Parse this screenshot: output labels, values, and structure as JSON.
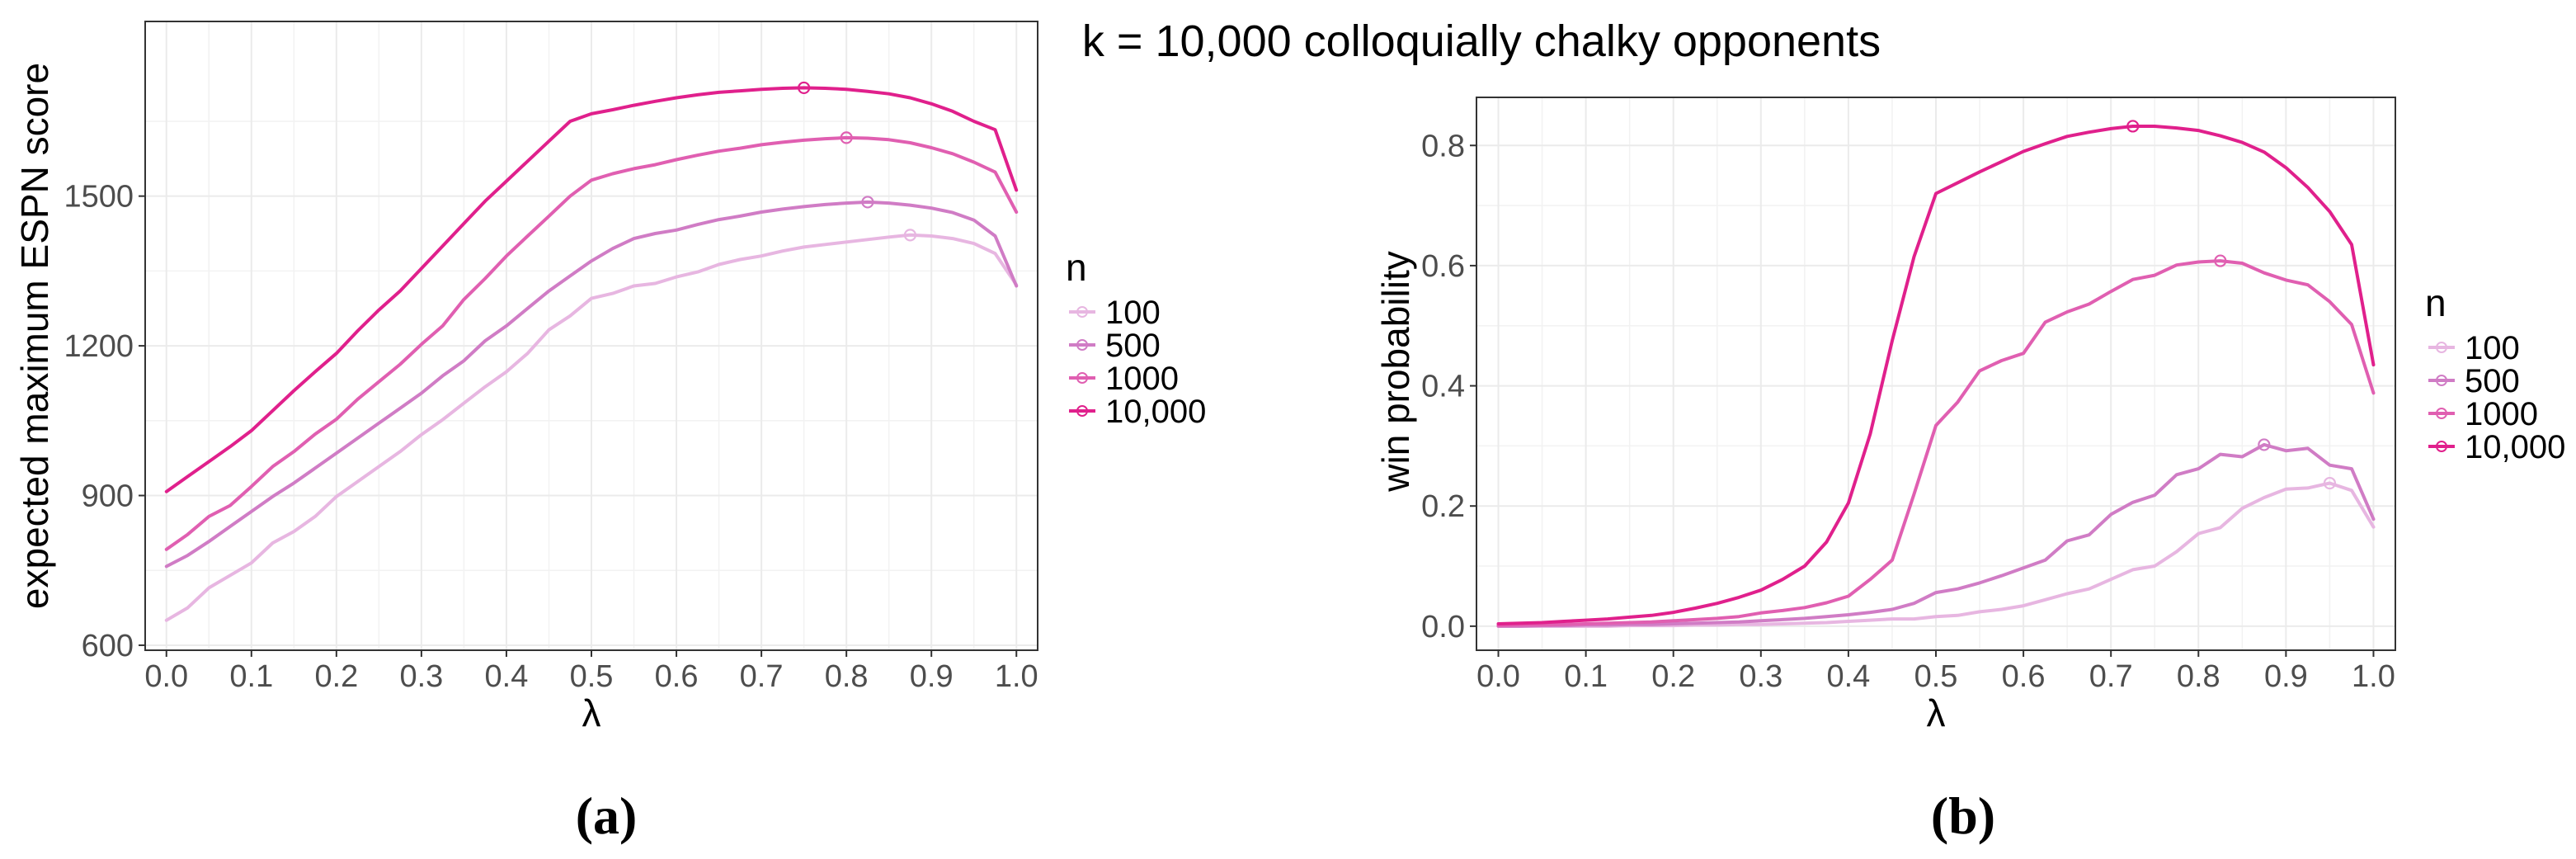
{
  "chart_data": [
    {
      "id": "a",
      "type": "line",
      "caption": "(a)",
      "title": "",
      "xlabel": "λ",
      "ylabel": "expected maximum ESPN score",
      "xlim": [
        -0.025,
        1.025
      ],
      "ylim": [
        590,
        1850
      ],
      "xticks": [
        0.0,
        0.1,
        0.2,
        0.3,
        0.4,
        0.5,
        0.6,
        0.7,
        0.8,
        0.9,
        1.0
      ],
      "xtick_labels": [
        "0.0",
        "0.1",
        "0.2",
        "0.3",
        "0.4",
        "0.5",
        "0.6",
        "0.7",
        "0.8",
        "0.9",
        "1.0"
      ],
      "yticks": [
        600,
        900,
        1200,
        1500
      ],
      "ytick_labels": [
        "600",
        "900",
        "1200",
        "1500"
      ],
      "legend_title": "n",
      "legend_position": "right",
      "x": [
        0,
        0.025,
        0.05,
        0.075,
        0.1,
        0.125,
        0.15,
        0.175,
        0.2,
        0.225,
        0.25,
        0.275,
        0.3,
        0.325,
        0.35,
        0.375,
        0.4,
        0.425,
        0.45,
        0.475,
        0.5,
        0.525,
        0.55,
        0.575,
        0.6,
        0.625,
        0.65,
        0.675,
        0.7,
        0.725,
        0.75,
        0.775,
        0.8,
        0.825,
        0.85,
        0.875,
        0.9,
        0.925,
        0.95,
        0.975,
        1.0
      ],
      "series": [
        {
          "name": "100",
          "color": "#e7b6e1",
          "values": [
            650,
            675,
            715,
            740,
            765,
            805,
            828,
            858,
            898,
            928,
            958,
            988,
            1022,
            1052,
            1085,
            1118,
            1148,
            1185,
            1232,
            1260,
            1295,
            1305,
            1320,
            1325,
            1338,
            1348,
            1363,
            1373,
            1380,
            1390,
            1398,
            1403,
            1408,
            1413,
            1418,
            1422,
            1420,
            1415,
            1405,
            1385,
            1322
          ],
          "max_x": 0.875,
          "max_y": 1422
        },
        {
          "name": "500",
          "color": "#d07cc5",
          "values": [
            758,
            780,
            808,
            838,
            868,
            898,
            925,
            955,
            985,
            1015,
            1045,
            1075,
            1105,
            1140,
            1170,
            1210,
            1240,
            1275,
            1310,
            1340,
            1370,
            1395,
            1415,
            1425,
            1432,
            1443,
            1453,
            1460,
            1468,
            1474,
            1479,
            1483,
            1486,
            1488,
            1486,
            1482,
            1476,
            1467,
            1452,
            1420,
            1320
          ],
          "max_x": 0.825,
          "max_y": 1488
        },
        {
          "name": "1000",
          "color": "#e05fb1",
          "values": [
            792,
            822,
            858,
            880,
            918,
            958,
            988,
            1023,
            1053,
            1093,
            1128,
            1163,
            1203,
            1240,
            1293,
            1335,
            1380,
            1420,
            1460,
            1500,
            1532,
            1545,
            1555,
            1563,
            1573,
            1582,
            1590,
            1596,
            1603,
            1608,
            1612,
            1615,
            1617,
            1616,
            1613,
            1607,
            1597,
            1585,
            1568,
            1548,
            1468
          ],
          "max_x": 0.8,
          "max_y": 1617
        },
        {
          "name": "10,000",
          "color": "#e0208c",
          "values": [
            908,
            938,
            968,
            998,
            1030,
            1070,
            1110,
            1148,
            1185,
            1230,
            1272,
            1310,
            1355,
            1400,
            1445,
            1490,
            1530,
            1570,
            1610,
            1650,
            1665,
            1673,
            1682,
            1690,
            1697,
            1703,
            1708,
            1711,
            1714,
            1716,
            1717,
            1716,
            1714,
            1710,
            1705,
            1697,
            1685,
            1670,
            1650,
            1633,
            1512
          ],
          "max_x": 0.75,
          "max_y": 1717
        }
      ]
    },
    {
      "id": "b",
      "type": "line",
      "caption": "(b)",
      "title": "k = 10,000 colloquially chalky opponents",
      "xlabel": "λ",
      "ylabel": "win probability",
      "xlim": [
        -0.025,
        1.025
      ],
      "ylim": [
        -0.04,
        0.88
      ],
      "xticks": [
        0.0,
        0.1,
        0.2,
        0.3,
        0.4,
        0.5,
        0.6,
        0.7,
        0.8,
        0.9,
        1.0
      ],
      "xtick_labels": [
        "0.0",
        "0.1",
        "0.2",
        "0.3",
        "0.4",
        "0.5",
        "0.6",
        "0.7",
        "0.8",
        "0.9",
        "1.0"
      ],
      "yticks": [
        0.0,
        0.2,
        0.4,
        0.6,
        0.8
      ],
      "ytick_labels": [
        "0.0",
        "0.2",
        "0.4",
        "0.6",
        "0.8"
      ],
      "legend_title": "n",
      "legend_position": "right",
      "x": [
        0,
        0.025,
        0.05,
        0.075,
        0.1,
        0.125,
        0.15,
        0.175,
        0.2,
        0.225,
        0.25,
        0.275,
        0.3,
        0.325,
        0.35,
        0.375,
        0.4,
        0.425,
        0.45,
        0.475,
        0.5,
        0.525,
        0.55,
        0.575,
        0.6,
        0.625,
        0.65,
        0.675,
        0.7,
        0.725,
        0.75,
        0.775,
        0.8,
        0.825,
        0.85,
        0.875,
        0.9,
        0.925,
        0.95,
        0.975,
        1.0
      ],
      "series": [
        {
          "name": "100",
          "color": "#e7b6e1",
          "values": [
            0.0,
            0.0,
            0.0,
            0.0,
            0.0,
            0.0,
            0.001,
            0.001,
            0.001,
            0.002,
            0.002,
            0.003,
            0.003,
            0.004,
            0.005,
            0.006,
            0.008,
            0.01,
            0.012,
            0.012,
            0.016,
            0.018,
            0.024,
            0.028,
            0.034,
            0.044,
            0.054,
            0.062,
            0.078,
            0.094,
            0.1,
            0.124,
            0.154,
            0.164,
            0.196,
            0.214,
            0.228,
            0.23,
            0.238,
            0.226,
            0.165
          ],
          "max_x": 0.95,
          "max_y": 0.238
        },
        {
          "name": "500",
          "color": "#d07cc5",
          "values": [
            0.0,
            0.0,
            0.001,
            0.001,
            0.002,
            0.002,
            0.003,
            0.003,
            0.004,
            0.005,
            0.006,
            0.007,
            0.009,
            0.011,
            0.013,
            0.016,
            0.019,
            0.023,
            0.028,
            0.038,
            0.056,
            0.062,
            0.072,
            0.084,
            0.097,
            0.11,
            0.142,
            0.152,
            0.186,
            0.206,
            0.218,
            0.252,
            0.262,
            0.286,
            0.282,
            0.302,
            0.292,
            0.296,
            0.268,
            0.262,
            0.178
          ],
          "max_x": 0.875,
          "max_y": 0.302
        },
        {
          "name": "1000",
          "color": "#e05fb1",
          "values": [
            0.001,
            0.002,
            0.002,
            0.003,
            0.004,
            0.005,
            0.006,
            0.007,
            0.009,
            0.011,
            0.013,
            0.016,
            0.022,
            0.026,
            0.031,
            0.039,
            0.05,
            0.078,
            0.11,
            0.22,
            0.334,
            0.373,
            0.425,
            0.442,
            0.454,
            0.506,
            0.523,
            0.536,
            0.557,
            0.577,
            0.584,
            0.601,
            0.606,
            0.608,
            0.604,
            0.588,
            0.576,
            0.568,
            0.54,
            0.502,
            0.388
          ],
          "max_x": 0.825,
          "max_y": 0.608
        },
        {
          "name": "10,000",
          "color": "#e0208c",
          "values": [
            0.004,
            0.005,
            0.006,
            0.008,
            0.01,
            0.012,
            0.015,
            0.018,
            0.023,
            0.03,
            0.038,
            0.048,
            0.06,
            0.078,
            0.1,
            0.14,
            0.205,
            0.32,
            0.475,
            0.615,
            0.72,
            0.738,
            0.756,
            0.773,
            0.79,
            0.803,
            0.815,
            0.822,
            0.828,
            0.832,
            0.832,
            0.829,
            0.825,
            0.816,
            0.805,
            0.789,
            0.763,
            0.73,
            0.69,
            0.635,
            0.435
          ],
          "max_x": 0.725,
          "max_y": 0.832
        }
      ]
    }
  ]
}
